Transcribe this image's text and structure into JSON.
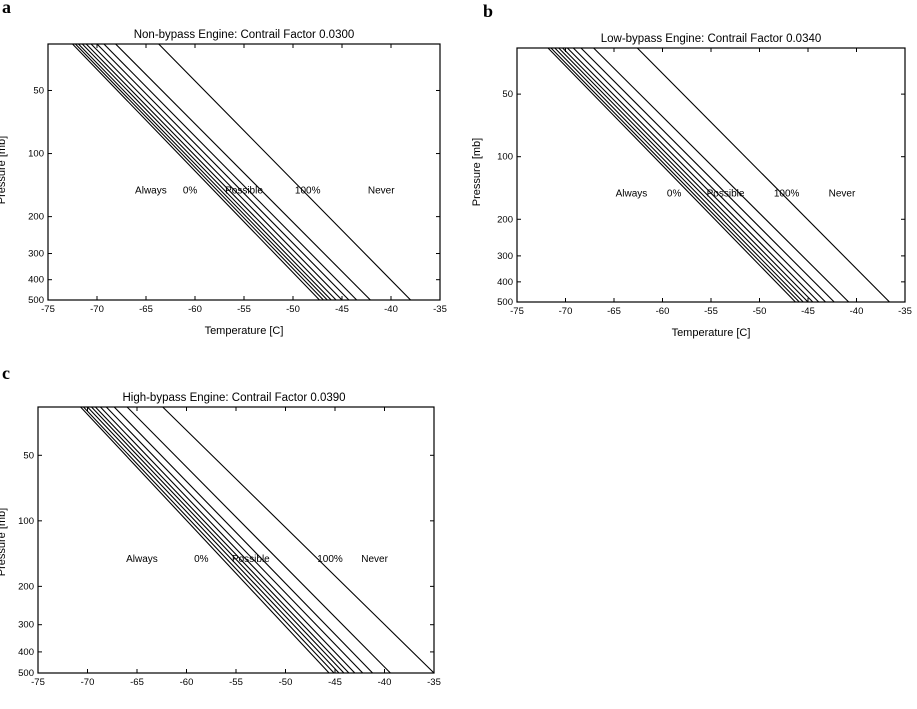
{
  "figure": {
    "panels": [
      "a",
      "b",
      "c"
    ]
  },
  "chart_data": [
    {
      "panel": "a",
      "type": "line",
      "title": "Non-bypass Engine:  Contrail Factor 0.0300",
      "xlabel": "Temperature [C]",
      "ylabel": "Pressure [mb]",
      "xlim": [
        -75,
        -35
      ],
      "ylim": [
        30,
        500
      ],
      "y_scale": "log",
      "x_ticks": [
        -75,
        -70,
        -65,
        -60,
        -55,
        -50,
        -45,
        -40,
        -35
      ],
      "y_ticks": [
        50,
        100,
        200,
        300,
        400,
        500
      ],
      "grid": false,
      "region_labels": [
        {
          "text": "Always",
          "x": -64.5,
          "y": 150
        },
        {
          "text": "0%",
          "x": -60.5,
          "y": 150
        },
        {
          "text": "Possible",
          "x": -55.0,
          "y": 150
        },
        {
          "text": "100%",
          "x": -48.5,
          "y": 150
        },
        {
          "text": "Never",
          "x": -41.0,
          "y": 150
        }
      ],
      "series": [
        {
          "values": [
            {
              "x": -72.5,
              "y": 30
            },
            {
              "x": -47.3,
              "y": 500
            }
          ]
        },
        {
          "values": [
            {
              "x": -72.2,
              "y": 30
            },
            {
              "x": -46.9,
              "y": 500
            }
          ]
        },
        {
          "values": [
            {
              "x": -71.9,
              "y": 30
            },
            {
              "x": -46.5,
              "y": 500
            }
          ]
        },
        {
          "values": [
            {
              "x": -71.5,
              "y": 30
            },
            {
              "x": -46.1,
              "y": 500
            }
          ]
        },
        {
          "values": [
            {
              "x": -71.1,
              "y": 30
            },
            {
              "x": -45.6,
              "y": 500
            }
          ]
        },
        {
          "values": [
            {
              "x": -70.6,
              "y": 30
            },
            {
              "x": -45.0,
              "y": 500
            }
          ]
        },
        {
          "values": [
            {
              "x": -70.0,
              "y": 30
            },
            {
              "x": -44.3,
              "y": 500
            }
          ]
        },
        {
          "values": [
            {
              "x": -69.3,
              "y": 30
            },
            {
              "x": -43.5,
              "y": 500
            }
          ]
        },
        {
          "values": [
            {
              "x": -68.1,
              "y": 30
            },
            {
              "x": -42.1,
              "y": 500
            }
          ]
        },
        {
          "values": [
            {
              "x": -63.7,
              "y": 30
            },
            {
              "x": -38.0,
              "y": 500
            }
          ]
        }
      ]
    },
    {
      "panel": "b",
      "type": "line",
      "title": "Low-bypass Engine:  Contrail Factor 0.0340",
      "xlabel": "Temperature [C]",
      "ylabel": "Pressure [mb]",
      "xlim": [
        -75,
        -35
      ],
      "ylim": [
        30,
        500
      ],
      "y_scale": "log",
      "x_ticks": [
        -75,
        -70,
        -65,
        -60,
        -55,
        -50,
        -45,
        -40,
        -35
      ],
      "y_ticks": [
        50,
        100,
        200,
        300,
        400,
        500
      ],
      "grid": false,
      "region_labels": [
        {
          "text": "Always",
          "x": -63.2,
          "y": 150
        },
        {
          "text": "0%",
          "x": -58.8,
          "y": 150
        },
        {
          "text": "Possible",
          "x": -53.5,
          "y": 150
        },
        {
          "text": "100%",
          "x": -47.2,
          "y": 150
        },
        {
          "text": "Never",
          "x": -41.5,
          "y": 150
        }
      ],
      "series": [
        {
          "values": [
            {
              "x": -71.8,
              "y": 30
            },
            {
              "x": -46.3,
              "y": 500
            }
          ]
        },
        {
          "values": [
            {
              "x": -71.5,
              "y": 30
            },
            {
              "x": -45.9,
              "y": 500
            }
          ]
        },
        {
          "values": [
            {
              "x": -71.1,
              "y": 30
            },
            {
              "x": -45.5,
              "y": 500
            }
          ]
        },
        {
          "values": [
            {
              "x": -70.7,
              "y": 30
            },
            {
              "x": -45.0,
              "y": 500
            }
          ]
        },
        {
          "values": [
            {
              "x": -70.3,
              "y": 30
            },
            {
              "x": -44.5,
              "y": 500
            }
          ]
        },
        {
          "values": [
            {
              "x": -69.8,
              "y": 30
            },
            {
              "x": -43.9,
              "y": 500
            }
          ]
        },
        {
          "values": [
            {
              "x": -69.2,
              "y": 30
            },
            {
              "x": -43.2,
              "y": 500
            }
          ]
        },
        {
          "values": [
            {
              "x": -68.4,
              "y": 30
            },
            {
              "x": -42.3,
              "y": 500
            }
          ]
        },
        {
          "values": [
            {
              "x": -67.1,
              "y": 30
            },
            {
              "x": -40.8,
              "y": 500
            }
          ]
        },
        {
          "values": [
            {
              "x": -62.6,
              "y": 30
            },
            {
              "x": -36.6,
              "y": 500
            }
          ]
        }
      ]
    },
    {
      "panel": "c",
      "type": "line",
      "title": "High-bypass Engine:  Contrail Factor 0.0390",
      "xlabel": "",
      "ylabel": "Pressure [mb]",
      "xlim": [
        -75,
        -35
      ],
      "ylim": [
        30,
        500
      ],
      "y_scale": "log",
      "x_ticks": [
        -75,
        -70,
        -65,
        -60,
        -55,
        -50,
        -45,
        -40,
        -35
      ],
      "y_ticks": [
        50,
        100,
        200,
        300,
        400,
        500
      ],
      "grid": false,
      "region_labels": [
        {
          "text": "Always",
          "x": -64.5,
          "y": 150
        },
        {
          "text": "0%",
          "x": -58.5,
          "y": 150
        },
        {
          "text": "Possible",
          "x": -53.5,
          "y": 150
        },
        {
          "text": "100%",
          "x": -45.5,
          "y": 150
        },
        {
          "text": "Never",
          "x": -41.0,
          "y": 150
        }
      ],
      "series": [
        {
          "values": [
            {
              "x": -70.7,
              "y": 30
            },
            {
              "x": -45.6,
              "y": 500
            }
          ]
        },
        {
          "values": [
            {
              "x": -70.4,
              "y": 30
            },
            {
              "x": -45.1,
              "y": 500
            }
          ]
        },
        {
          "values": [
            {
              "x": -70.0,
              "y": 30
            },
            {
              "x": -44.6,
              "y": 500
            }
          ]
        },
        {
          "values": [
            {
              "x": -69.6,
              "y": 30
            },
            {
              "x": -44.1,
              "y": 500
            }
          ]
        },
        {
          "values": [
            {
              "x": -69.2,
              "y": 30
            },
            {
              "x": -43.6,
              "y": 500
            }
          ]
        },
        {
          "values": [
            {
              "x": -68.7,
              "y": 30
            },
            {
              "x": -43.0,
              "y": 500
            }
          ]
        },
        {
          "values": [
            {
              "x": -68.1,
              "y": 30
            },
            {
              "x": -42.2,
              "y": 500
            }
          ]
        },
        {
          "values": [
            {
              "x": -67.3,
              "y": 30
            },
            {
              "x": -41.2,
              "y": 500
            }
          ]
        },
        {
          "values": [
            {
              "x": -66.0,
              "y": 30
            },
            {
              "x": -39.4,
              "y": 500
            }
          ]
        },
        {
          "values": [
            {
              "x": -62.4,
              "y": 30
            },
            {
              "x": -35.0,
              "y": 500
            }
          ]
        }
      ]
    }
  ]
}
